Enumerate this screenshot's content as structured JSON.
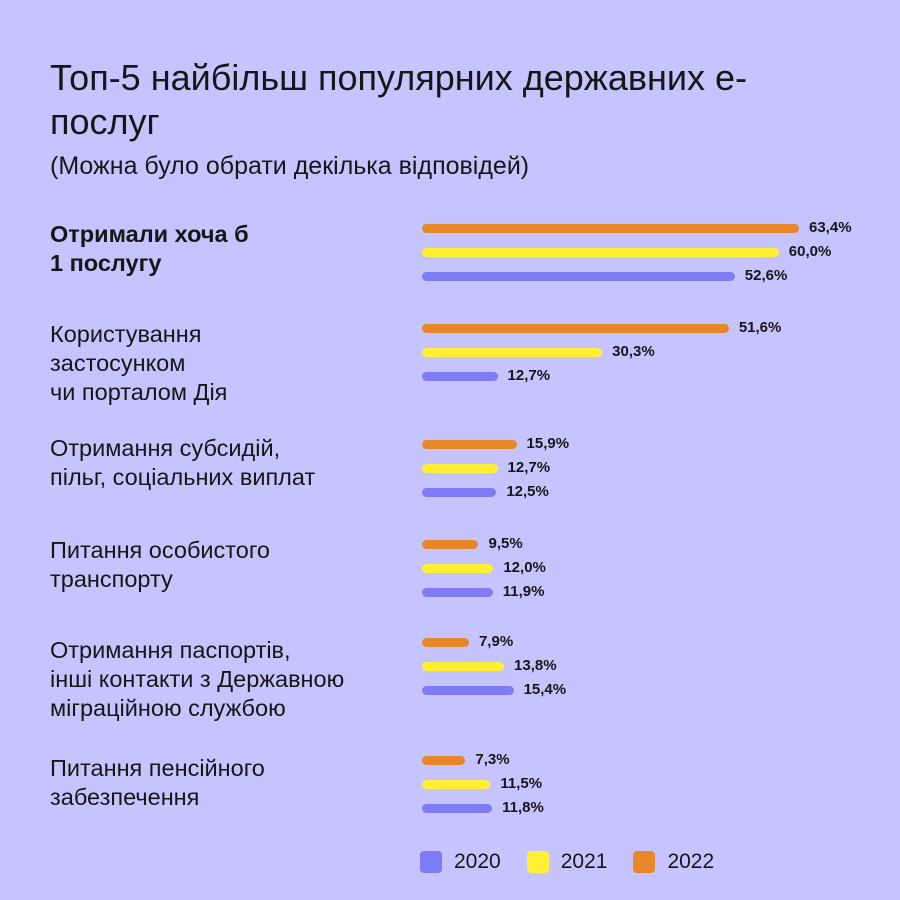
{
  "chart_data": {
    "type": "bar",
    "title": "Топ-5 найбільш популярних державних е-послуг",
    "subtitle": "(Можна було обрати декілька відповідей)",
    "categories": [
      "Отримали хоча б 1 послугу",
      "Користування застосунком чи порталом Дія",
      "Отримання субсидій, пільг, соціальних виплат",
      "Питання особистого транспорту",
      "Отримання паспортів, інші контакти з Державною міграційною службою",
      "Питання пенсійного забезпечення"
    ],
    "category_lines": [
      [
        "Отримали хоча б",
        "1 послугу"
      ],
      [
        "Користування",
        "застосунком",
        "чи порталом Дія"
      ],
      [
        "Отримання субсидій,",
        "пільг, соціальних виплат"
      ],
      [
        "Питання особистого",
        "транспорту"
      ],
      [
        "Отримання паспортів,",
        "інші контакти з Державною",
        "міграційною службою"
      ],
      [
        "Питання пенсійного",
        "забезпечення"
      ]
    ],
    "series": [
      {
        "name": "2022",
        "color": "#e8862a",
        "values": [
          63.4,
          51.6,
          15.9,
          9.5,
          7.9,
          7.3
        ],
        "labels": [
          "63,4%",
          "51,6%",
          "15,9%",
          "9,5%",
          "7,9%",
          "7,3%"
        ]
      },
      {
        "name": "2021",
        "color": "#fff035",
        "values": [
          60.0,
          30.3,
          12.7,
          12.0,
          13.8,
          11.5
        ],
        "labels": [
          "60,0%",
          "30,3%",
          "12,7%",
          "12,0%",
          "13,8%",
          "11,5%"
        ]
      },
      {
        "name": "2020",
        "color": "#7f7bf4",
        "values": [
          52.6,
          12.7,
          12.5,
          11.9,
          15.4,
          11.8
        ],
        "labels": [
          "52,6%",
          "12,7%",
          "12,5%",
          "11,9%",
          "15,4%",
          "11,8%"
        ]
      }
    ],
    "legend": [
      {
        "name": "2020",
        "color": "#7f7bf4"
      },
      {
        "name": "2021",
        "color": "#fff035"
      },
      {
        "name": "2022",
        "color": "#e8862a"
      }
    ],
    "legend_position": "bottom",
    "xlim": [
      0,
      63.4
    ],
    "grid": false
  }
}
